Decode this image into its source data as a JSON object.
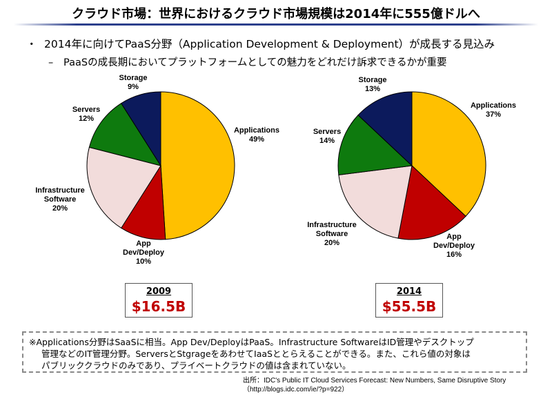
{
  "title": "クラウド市場：世界におけるクラウド市場規模は2014年に555億ドルへ",
  "bullets": {
    "b1_marker": "・",
    "b1": "2014年に向けてPaaS分野（Application Development & Deployment）が成長する見込み",
    "b2_marker": "–",
    "b2": "PaaSの成長期においてプラットフォームとしての魅力をどれだけ訴求できるかが重要"
  },
  "chart_data": [
    {
      "type": "pie",
      "year_label": "2009",
      "total_label": "$16.5B",
      "slices": [
        {
          "name": "Applications",
          "value": 49,
          "label": "49%",
          "color": "#FFC000"
        },
        {
          "name": "App Dev/Deploy",
          "value": 10,
          "label": "10%",
          "color": "#C00000"
        },
        {
          "name": "Infrastructure Software",
          "value": 20,
          "label": "20%",
          "color": "#F2DCDB"
        },
        {
          "name": "Servers",
          "value": 12,
          "label": "12%",
          "color": "#0E7A0E"
        },
        {
          "name": "Storage",
          "value": 9,
          "label": "9%",
          "color": "#0C1A5C"
        }
      ]
    },
    {
      "type": "pie",
      "year_label": "2014",
      "total_label": "$55.5B",
      "slices": [
        {
          "name": "Applications",
          "value": 37,
          "label": "37%",
          "color": "#FFC000"
        },
        {
          "name": "App Dev/Deploy",
          "value": 16,
          "label": "16%",
          "color": "#C00000"
        },
        {
          "name": "Infrastructure Software",
          "value": 20,
          "label": "20%",
          "color": "#F2DCDB"
        },
        {
          "name": "Servers",
          "value": 14,
          "label": "14%",
          "color": "#0E7A0E"
        },
        {
          "name": "Storage",
          "value": 13,
          "label": "13%",
          "color": "#0C1A5C"
        }
      ]
    }
  ],
  "note": {
    "line1": "※Applications分野はSaaSに相当。App Dev/DeployはPaaS。Infrastructure SoftwareはID管理やデスクトップ",
    "line2": "管理などのIT管理分野。ServersとStgrageをあわせてIaaSととらえることができる。また、これら値の対象は",
    "line3": "パブリッククラウドのみであり、プライベートクラウドの値は含まれていない。"
  },
  "source": {
    "line1": "出所：IDC's Public IT Cloud Services Forecast: New Numbers, Same Disruptive Story",
    "line2": "（http://blogs.idc.com/ie/?p=922）"
  }
}
